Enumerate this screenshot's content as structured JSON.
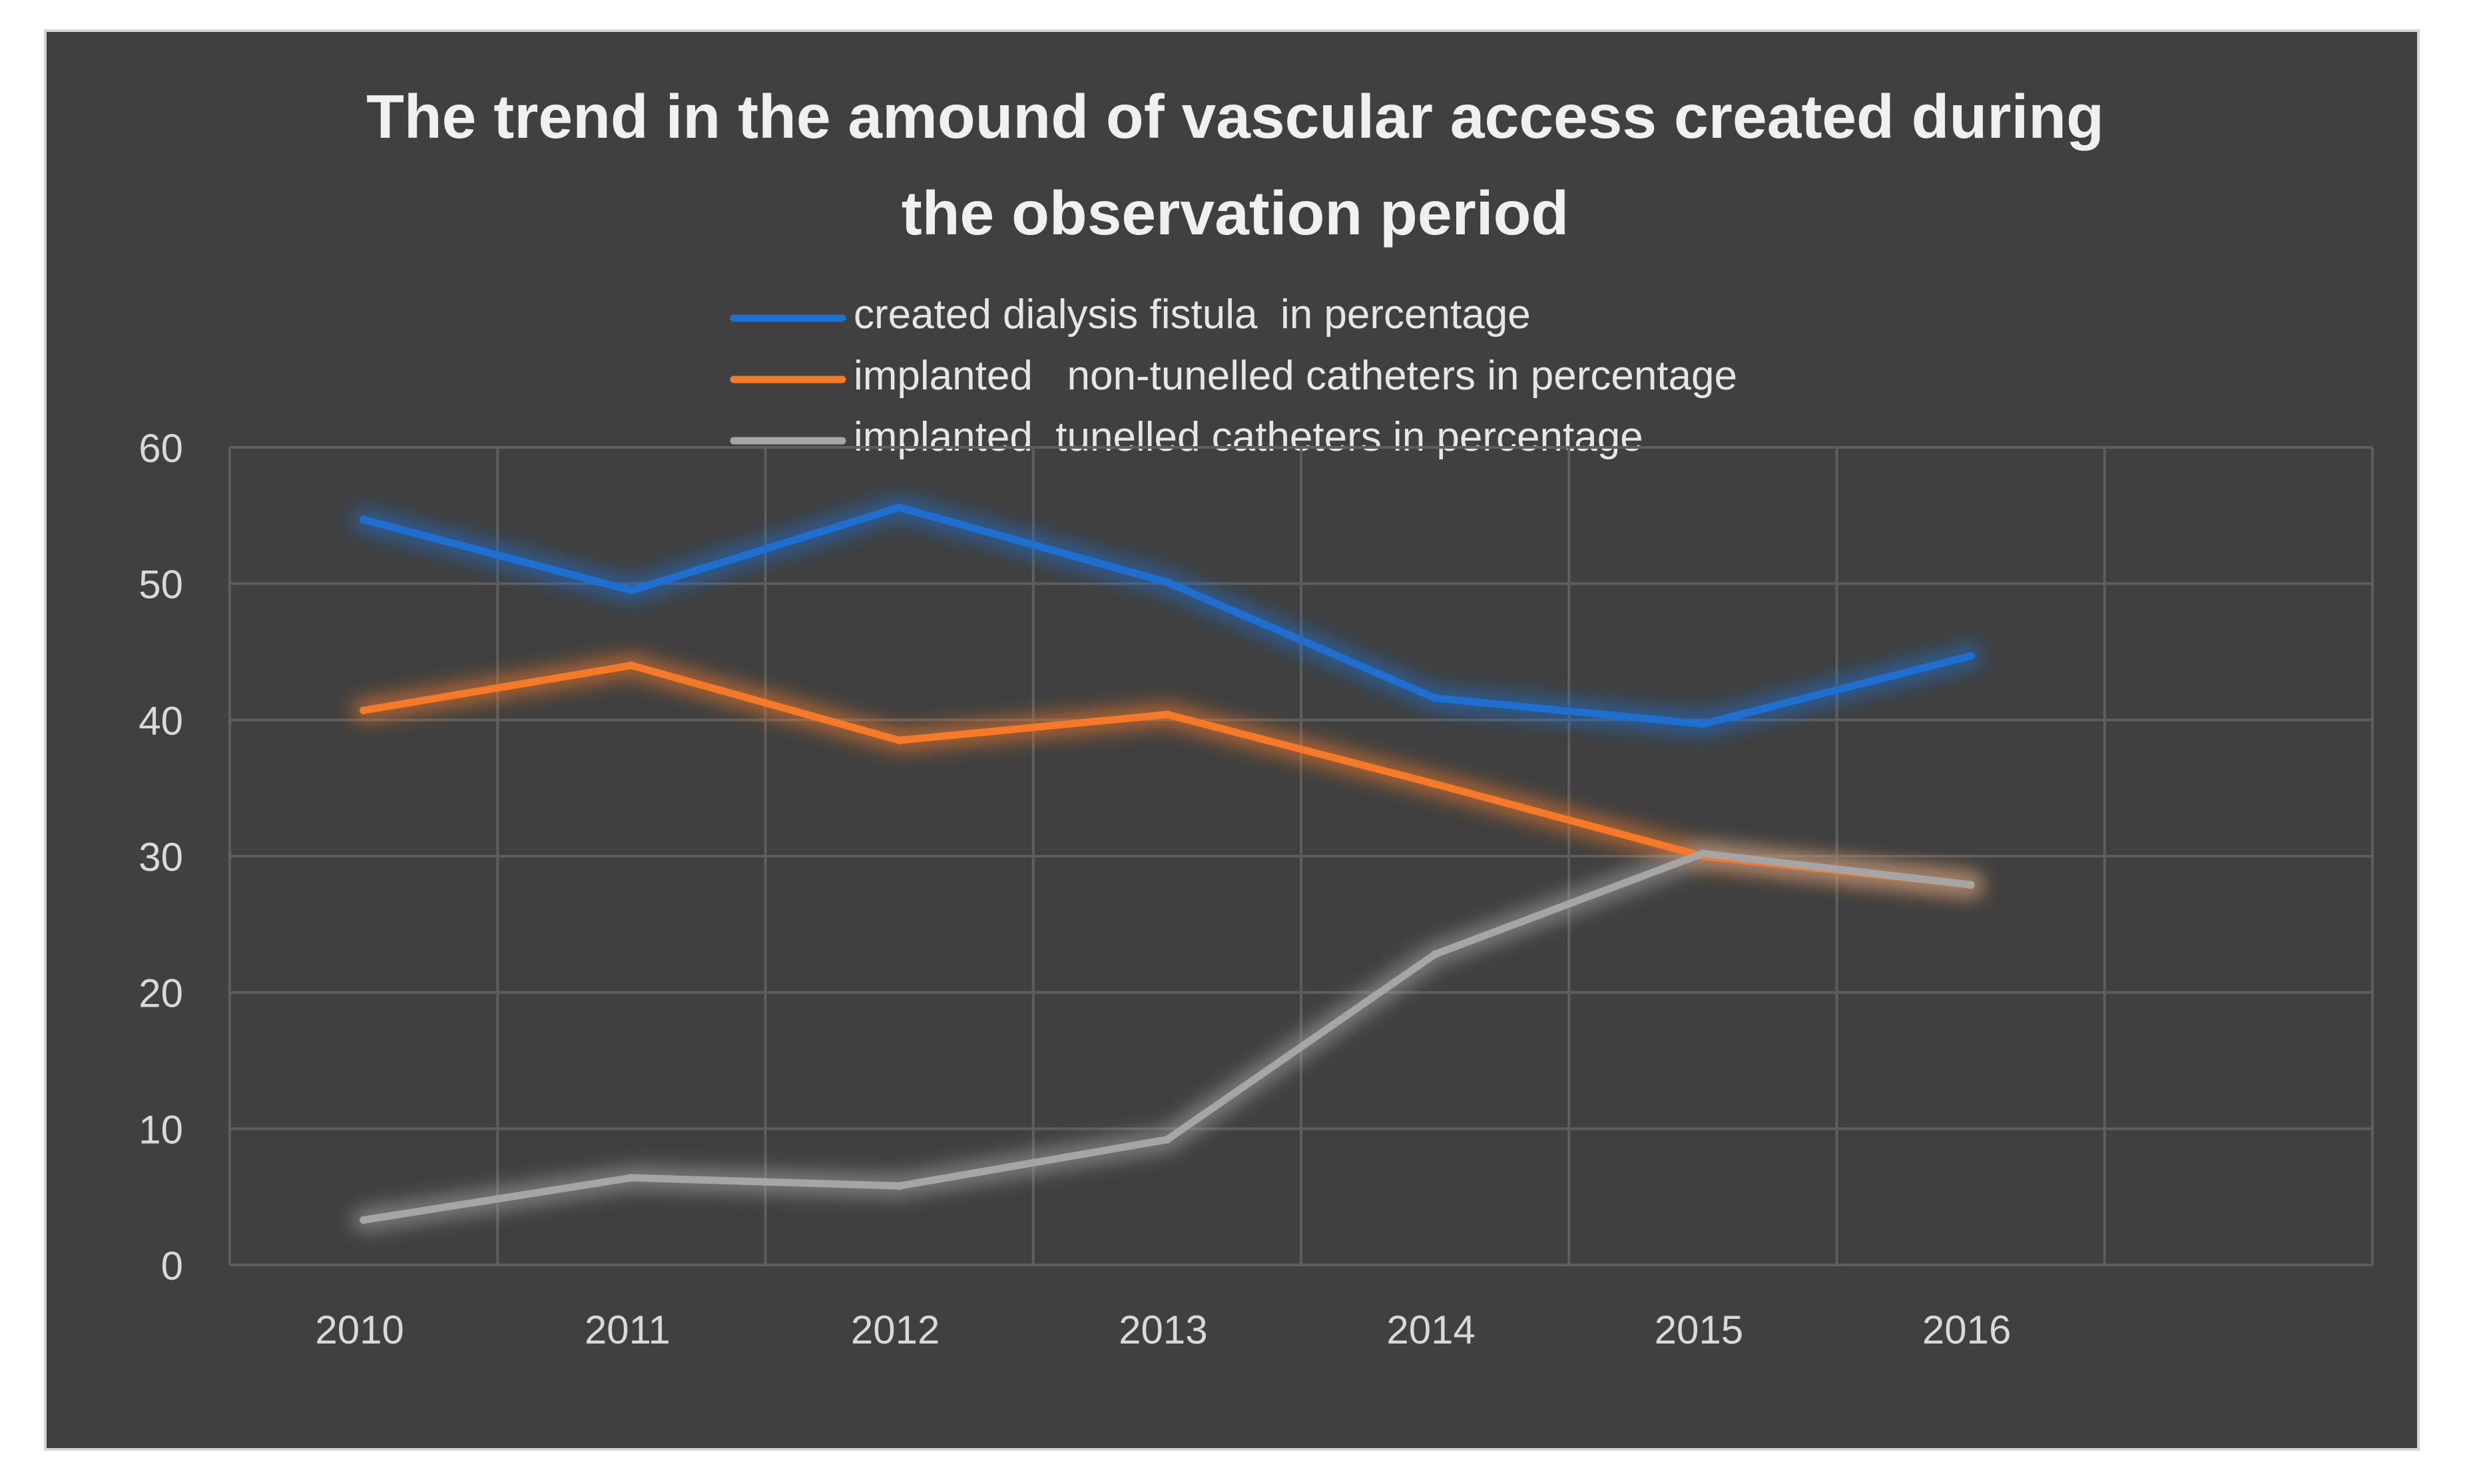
{
  "chart_data": {
    "type": "line",
    "title_lines": [
      "The trend in the amound of vascular access created during",
      "the observation period"
    ],
    "categories": [
      "2010",
      "2011",
      "2012",
      "2013",
      "2014",
      "2015",
      "2016"
    ],
    "extra_category_slots": 1,
    "yticks": [
      "0",
      "10",
      "20",
      "30",
      "40",
      "50",
      "60"
    ],
    "ylim": [
      0,
      60
    ],
    "grid": true,
    "legend_position": "top-center",
    "series": [
      {
        "name": "created dialysis fistula  in percentage",
        "color": "#1f6fd1",
        "values": [
          54.7,
          49.5,
          55.6,
          50.1,
          41.6,
          39.7,
          44.7
        ]
      },
      {
        "name": "implanted   non-tunelled catheters in percentage",
        "color": "#f47a2a",
        "values": [
          40.7,
          44.0,
          38.5,
          40.4,
          35.3,
          30.0,
          27.9
        ]
      },
      {
        "name": "implanted  tunelled catheters in percentage",
        "color": "#a5a5a5",
        "values": [
          3.3,
          6.4,
          5.8,
          9.2,
          22.8,
          30.2,
          27.9
        ]
      }
    ]
  }
}
